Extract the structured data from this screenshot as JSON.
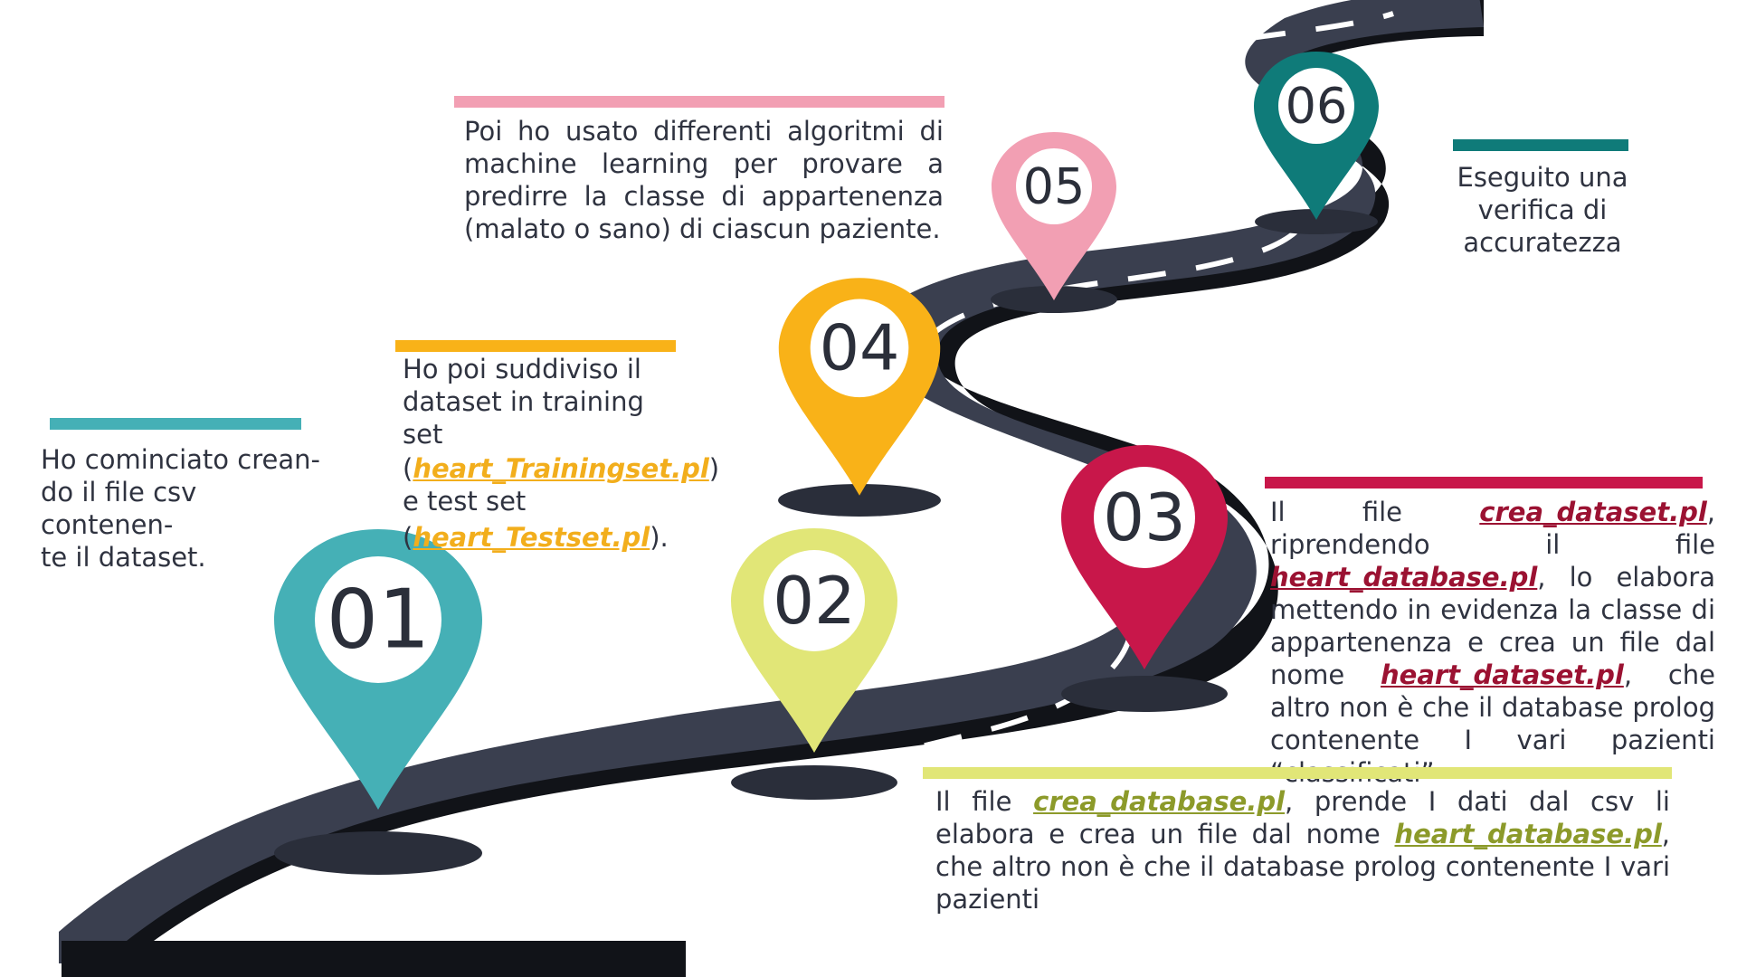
{
  "steps": [
    {
      "number": "01",
      "color": "#45b0b6",
      "text": "Ho cominciato creando il file csv contenente il dataset."
    },
    {
      "number": "02",
      "color": "#e1e677"
    },
    {
      "number": "03",
      "color": "#c8174a"
    },
    {
      "number": "04",
      "color": "#f9b218"
    },
    {
      "number": "05",
      "color": "#f29fb3",
      "text": "Poi ho usato differenti algoritmi di machine learning per provare a predirre la classe di appartenenza (malato o sano) di ciascun paziente."
    },
    {
      "number": "06",
      "color": "#0f7b79",
      "text": "Eseguito una verifica di accuratezza"
    }
  ],
  "step01": {
    "line1": "Ho cominciato crean-",
    "line2": "do il file csv contenen-",
    "line3": "te il dataset."
  },
  "step02": {
    "pre": "Il file ",
    "file1": "crea_database.pl",
    "mid": ", prende I dati dal csv li elabora e crea un file dal nome ",
    "file2": "heart_database.pl",
    "post": ", che altro non è che il database prolog contenente I vari pazienti"
  },
  "step03": {
    "pre": "Il file ",
    "file1": "crea_dataset.pl",
    "mid1": ", riprendendo il file ",
    "file2": "heart_database.pl",
    "mid2": ", lo elabora mettendo in evidenza la classe di appartenenza e crea un file dal nome ",
    "file3": "heart_dataset.pl",
    "post": ", che altro non è che il database prolog contenente I vari pazienti “classificati”"
  },
  "step04": {
    "line1": "Ho poi suddiviso il",
    "line2": "dataset in training set",
    "open1": "(",
    "file1": "heart_Trainingset.pl",
    "close1": ")",
    "line4": "e test set",
    "open2": "(",
    "file2": "heart_Testset.pl",
    "close2": ")."
  },
  "colors": {
    "road": "#3a3f4f",
    "road_edge": "#0f1115",
    "dash": "#ffffff"
  }
}
